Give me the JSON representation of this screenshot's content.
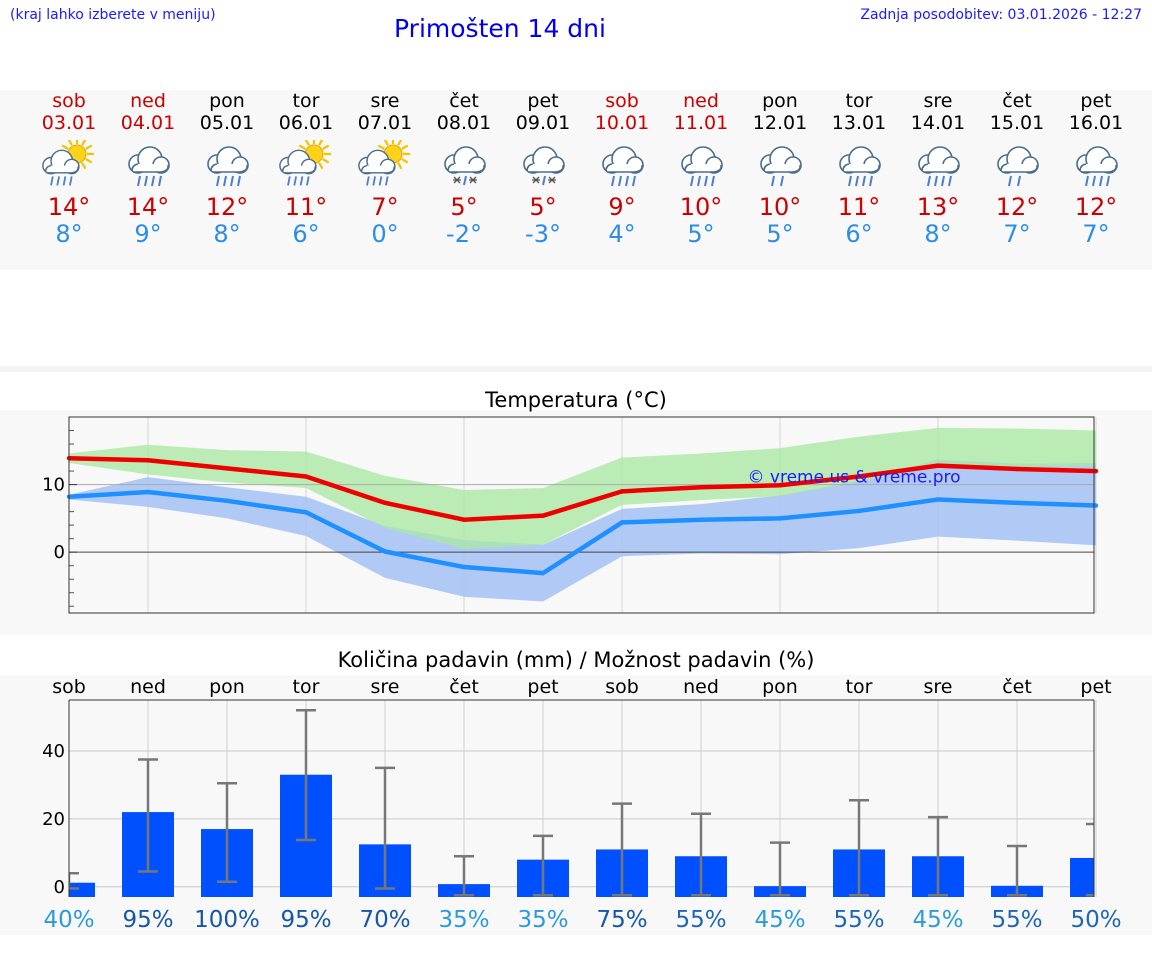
{
  "header": {
    "hint": "(kraj lahko izberete v meniju)",
    "title": "Primošten 14 dni",
    "updated": "Zadnja posodobitev: 03.01.2026 - 12:27"
  },
  "colors": {
    "weekend": "#cc0000",
    "weekday": "#000000",
    "tmax": "#cc0000",
    "tmin": "#2b8de6",
    "bar": "#0050ff",
    "max_line": "#ee0000",
    "min_line": "#1e90ff",
    "max_band": "#a8e8a0",
    "min_band": "#a8c4f4"
  },
  "days": [
    {
      "name": "sob",
      "date": "03.01",
      "weekend": true,
      "icon": "sun-cloud-rain-icon",
      "tmax": "14°",
      "tmin": "8°"
    },
    {
      "name": "ned",
      "date": "04.01",
      "weekend": true,
      "icon": "cloud-rain-icon",
      "tmax": "14°",
      "tmin": "9°"
    },
    {
      "name": "pon",
      "date": "05.01",
      "weekend": false,
      "icon": "cloud-rain-icon",
      "tmax": "12°",
      "tmin": "8°"
    },
    {
      "name": "tor",
      "date": "06.01",
      "weekend": false,
      "icon": "sun-cloud-rain-icon",
      "tmax": "11°",
      "tmin": "6°"
    },
    {
      "name": "sre",
      "date": "07.01",
      "weekend": false,
      "icon": "sun-cloud-rain-icon",
      "tmax": "7°",
      "tmin": "0°"
    },
    {
      "name": "čet",
      "date": "08.01",
      "weekend": false,
      "icon": "cloud-sleet-icon",
      "tmax": "5°",
      "tmin": "-2°"
    },
    {
      "name": "pet",
      "date": "09.01",
      "weekend": false,
      "icon": "cloud-sleet-icon",
      "tmax": "5°",
      "tmin": "-3°"
    },
    {
      "name": "sob",
      "date": "10.01",
      "weekend": true,
      "icon": "cloud-rain-icon",
      "tmax": "9°",
      "tmin": "4°"
    },
    {
      "name": "ned",
      "date": "11.01",
      "weekend": true,
      "icon": "cloud-rain-icon",
      "tmax": "10°",
      "tmin": "5°"
    },
    {
      "name": "pon",
      "date": "12.01",
      "weekend": false,
      "icon": "cloud-light-rain-icon",
      "tmax": "10°",
      "tmin": "5°"
    },
    {
      "name": "tor",
      "date": "13.01",
      "weekend": false,
      "icon": "cloud-rain-icon",
      "tmax": "11°",
      "tmin": "6°"
    },
    {
      "name": "sre",
      "date": "14.01",
      "weekend": false,
      "icon": "cloud-rain-icon",
      "tmax": "13°",
      "tmin": "8°"
    },
    {
      "name": "čet",
      "date": "15.01",
      "weekend": false,
      "icon": "cloud-light-rain-icon",
      "tmax": "12°",
      "tmin": "7°"
    },
    {
      "name": "pet",
      "date": "16.01",
      "weekend": false,
      "icon": "cloud-rain-icon",
      "tmax": "12°",
      "tmin": "7°"
    }
  ],
  "chart_data": [
    {
      "type": "line",
      "title": "Temperatura (°C)",
      "watermark": "© vreme.us & vreme.pro",
      "ylim": [
        -9,
        20
      ],
      "yticks": [
        0,
        10
      ],
      "x": [
        0,
        1,
        2,
        3,
        4,
        5,
        6,
        7,
        8,
        9,
        10,
        11,
        12,
        13
      ],
      "series": [
        {
          "name": "max",
          "values": [
            13.9,
            13.6,
            12.4,
            11.2,
            7.3,
            4.8,
            5.4,
            9.0,
            9.6,
            9.9,
            11.2,
            12.8,
            12.3,
            12.0
          ]
        },
        {
          "name": "min",
          "values": [
            8.2,
            8.9,
            7.6,
            5.9,
            0.1,
            -2.2,
            -3.1,
            4.4,
            4.8,
            5.0,
            6.1,
            7.8,
            7.3,
            6.9
          ]
        }
      ],
      "bands": [
        {
          "name": "max-range",
          "upper": [
            14.6,
            15.9,
            15.1,
            14.9,
            11.3,
            9.2,
            9.5,
            14.0,
            14.6,
            15.4,
            17.1,
            18.4,
            18.3,
            18.0
          ],
          "lower": [
            13.2,
            11.5,
            10.3,
            9.5,
            3.6,
            0.5,
            1.1,
            7.0,
            7.7,
            8.3,
            10.4,
            12.8,
            12.6,
            12.7
          ]
        },
        {
          "name": "min-range",
          "upper": [
            8.5,
            11.1,
            9.6,
            8.2,
            3.9,
            1.8,
            1.1,
            6.4,
            7.1,
            8.4,
            10.6,
            13.7,
            13.1,
            13.2
          ],
          "lower": [
            7.8,
            6.7,
            5.0,
            2.4,
            -3.8,
            -6.6,
            -7.3,
            -0.6,
            -0.2,
            -0.3,
            0.6,
            2.3,
            1.7,
            1.0
          ]
        }
      ]
    },
    {
      "type": "bar",
      "title": "Količina padavin (mm) / Možnost padavin (%)",
      "ylim": [
        -3,
        55
      ],
      "yticks": [
        0,
        20,
        40
      ],
      "categories": [
        "sob",
        "ned",
        "pon",
        "tor",
        "sre",
        "čet",
        "pet",
        "sob",
        "ned",
        "pon",
        "tor",
        "sre",
        "čet",
        "pet"
      ],
      "values": [
        1.2,
        22.0,
        17.0,
        33.0,
        12.5,
        0.8,
        8.0,
        11.0,
        9.0,
        0.2,
        11.0,
        9.0,
        0.3,
        8.5
      ],
      "error_low": [
        -0.5,
        4.5,
        1.5,
        13.8,
        -0.5,
        -2.5,
        -2.5,
        -2.5,
        -2.5,
        -2.5,
        -2.5,
        -2.5,
        -2.5,
        -2.5
      ],
      "error_high": [
        4.0,
        37.5,
        30.5,
        52.0,
        35.0,
        9.0,
        15.0,
        24.5,
        21.5,
        13.0,
        25.5,
        20.5,
        12.0,
        18.5
      ],
      "probabilities": [
        "40%",
        "95%",
        "100%",
        "95%",
        "70%",
        "35%",
        "35%",
        "75%",
        "55%",
        "45%",
        "55%",
        "45%",
        "55%",
        "50%"
      ],
      "prob_values": [
        40,
        95,
        100,
        95,
        70,
        35,
        35,
        75,
        55,
        45,
        55,
        45,
        55,
        50
      ]
    }
  ]
}
